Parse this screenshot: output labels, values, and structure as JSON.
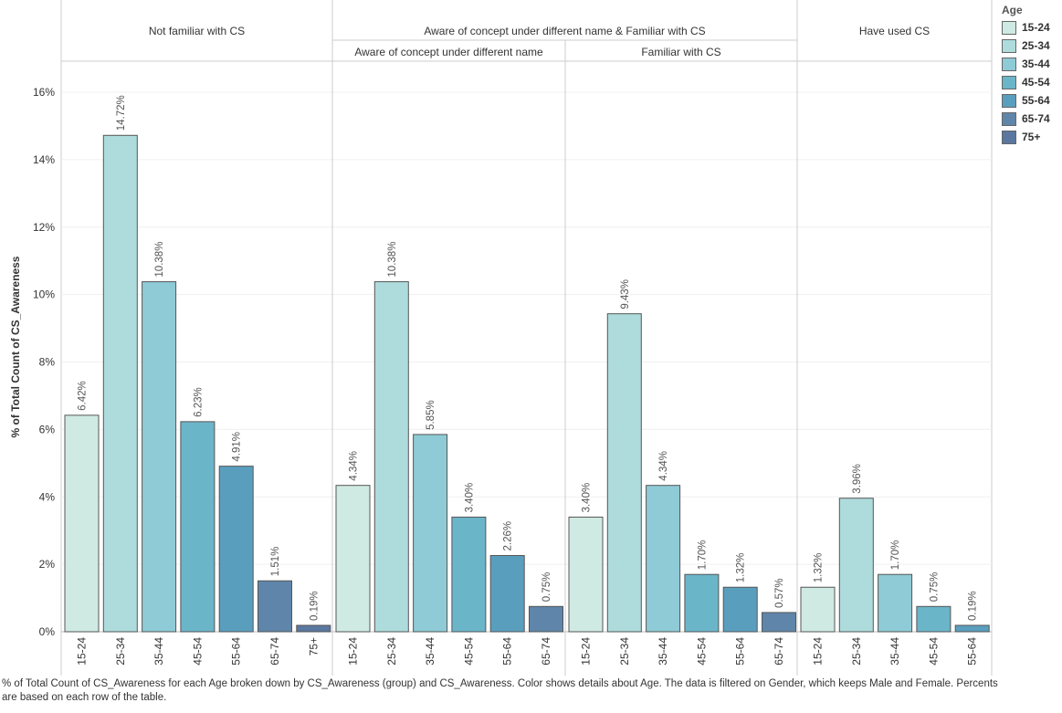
{
  "chart_data": {
    "type": "bar",
    "ylabel": "% of Total Count of CS_Awareness",
    "y_ticks": [
      "0%",
      "2%",
      "4%",
      "6%",
      "8%",
      "10%",
      "12%",
      "14%",
      "16%"
    ],
    "ylim": [
      0,
      16.8
    ],
    "grid": true,
    "group_header": "Aware of concept under different name & Familiar with CS",
    "panels": [
      {
        "header": "Not familiar with CS",
        "categories": [
          "15-24",
          "25-34",
          "35-44",
          "45-54",
          "55-64",
          "65-74",
          "75+"
        ],
        "values": [
          6.42,
          14.72,
          10.38,
          6.23,
          4.91,
          1.51,
          0.19
        ],
        "labels": [
          "6.42%",
          "14.72%",
          "10.38%",
          "6.23%",
          "4.91%",
          "1.51%",
          "0.19%"
        ]
      },
      {
        "header": "Aware of concept under different name",
        "categories": [
          "15-24",
          "25-34",
          "35-44",
          "45-54",
          "55-64",
          "65-74"
        ],
        "values": [
          4.34,
          10.38,
          5.85,
          3.4,
          2.26,
          0.75
        ],
        "labels": [
          "4.34%",
          "10.38%",
          "5.85%",
          "3.40%",
          "2.26%",
          "0.75%"
        ]
      },
      {
        "header": "Familiar with CS",
        "categories": [
          "15-24",
          "25-34",
          "35-44",
          "45-54",
          "55-64",
          "65-74"
        ],
        "values": [
          3.4,
          9.43,
          4.34,
          1.7,
          1.32,
          0.57
        ],
        "labels": [
          "3.40%",
          "9.43%",
          "4.34%",
          "1.70%",
          "1.32%",
          "0.57%"
        ]
      },
      {
        "header": "Have used CS",
        "categories": [
          "15-24",
          "25-34",
          "35-44",
          "45-54",
          "55-64"
        ],
        "values": [
          1.32,
          3.96,
          1.7,
          0.75,
          0.19
        ],
        "labels": [
          "1.32%",
          "3.96%",
          "1.70%",
          "0.75%",
          "0.19%"
        ]
      }
    ],
    "legend": {
      "title": "Age",
      "placement": "right",
      "items": [
        {
          "label": "15-24",
          "color": "#cfeae3"
        },
        {
          "label": "25-34",
          "color": "#aedbdc"
        },
        {
          "label": "35-44",
          "color": "#8ecbd6"
        },
        {
          "label": "45-54",
          "color": "#6bb5c9"
        },
        {
          "label": "55-64",
          "color": "#5a9ebe"
        },
        {
          "label": "65-74",
          "color": "#5f86aa"
        },
        {
          "label": "75+",
          "color": "#5a77a0"
        }
      ]
    }
  },
  "caption": "% of Total Count of CS_Awareness for each Age broken down by CS_Awareness (group) and CS_Awareness.  Color shows details about Age. The data is filtered on Gender, which keeps Male and Female. Percents are based on each row of the table."
}
